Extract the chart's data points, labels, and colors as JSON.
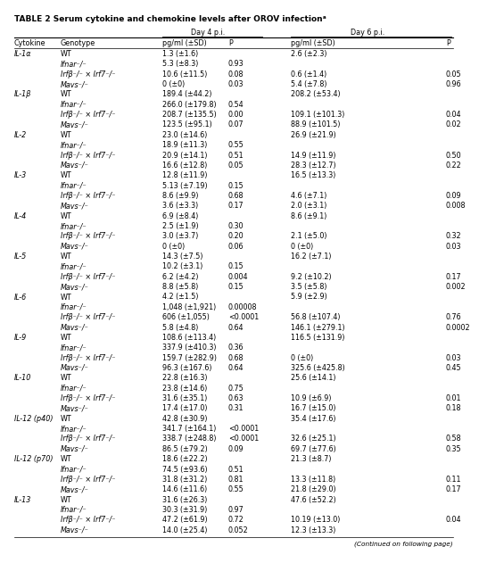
{
  "title": "TABLE 2 Serum cytokine and chemokine levels after OROV infectionᵃ",
  "header_day4": "Day 4 p.i.",
  "header_day6": "Day 6 p.i.",
  "col_headers": [
    "Cytokine",
    "Genotype",
    "pg/ml (±SD)",
    "P",
    "pg/ml (±SD)",
    "P"
  ],
  "rows": [
    [
      "IL-1α",
      "WT",
      "1.3 (±1.6)",
      "",
      "2.6 (±2.3)",
      ""
    ],
    [
      "",
      "Ifnar⁻/⁻",
      "5.3 (±8.3)",
      "0.93",
      "",
      ""
    ],
    [
      "",
      "Irfβ⁻/⁻ × Irf7⁻/⁻",
      "10.6 (±11.5)",
      "0.08",
      "0.6 (±1.4)",
      "0.05"
    ],
    [
      "",
      "Mavs⁻/⁻",
      "0 (±0)",
      "0.03",
      "5.4 (±7.8)",
      "0.96"
    ],
    [
      "IL-1β",
      "WT",
      "189.4 (±44.2)",
      "",
      "208.2 (±53.4)",
      ""
    ],
    [
      "",
      "Ifnar⁻/⁻",
      "266.0 (±179.8)",
      "0.54",
      "",
      ""
    ],
    [
      "",
      "Irfβ⁻/⁻ × Irf7⁻/⁻",
      "208.7 (±135.5)",
      "0.00",
      "109.1 (±101.3)",
      "0.04"
    ],
    [
      "",
      "Mavs⁻/⁻",
      "123.5 (±95.1)",
      "0.07",
      "88.9 (±101.5)",
      "0.02"
    ],
    [
      "IL-2",
      "WT",
      "23.0 (±14.6)",
      "",
      "26.9 (±21.9)",
      ""
    ],
    [
      "",
      "Ifnar⁻/⁻",
      "18.9 (±11.3)",
      "0.55",
      "",
      ""
    ],
    [
      "",
      "Irfβ⁻/⁻ × Irf7⁻/⁻",
      "20.9 (±14.1)",
      "0.51",
      "14.9 (±11.9)",
      "0.50"
    ],
    [
      "",
      "Mavs⁻/⁻",
      "16.6 (±12.8)",
      "0.05",
      "28.3 (±12.7)",
      "0.22"
    ],
    [
      "IL-3",
      "WT",
      "12.8 (±11.9)",
      "",
      "16.5 (±13.3)",
      ""
    ],
    [
      "",
      "Ifnar⁻/⁻",
      "5.13 (±7.19)",
      "0.15",
      "",
      ""
    ],
    [
      "",
      "Irfβ⁻/⁻ × Irf7⁻/⁻",
      "8.6 (±9.9)",
      "0.68",
      "4.6 (±7.1)",
      "0.09"
    ],
    [
      "",
      "Mavs⁻/⁻",
      "3.6 (±3.3)",
      "0.17",
      "2.0 (±3.1)",
      "0.008"
    ],
    [
      "IL-4",
      "WT",
      "6.9 (±8.4)",
      "",
      "8.6 (±9.1)",
      ""
    ],
    [
      "",
      "Ifnar⁻/⁻",
      "2.5 (±1.9)",
      "0.30",
      "",
      ""
    ],
    [
      "",
      "Irfβ⁻/⁻ × Irf7⁻/⁻",
      "3.0 (±3.7)",
      "0.20",
      "2.1 (±5.0)",
      "0.32"
    ],
    [
      "",
      "Mavs⁻/⁻",
      "0 (±0)",
      "0.06",
      "0 (±0)",
      "0.03"
    ],
    [
      "IL-5",
      "WT",
      "14.3 (±7.5)",
      "",
      "16.2 (±7.1)",
      ""
    ],
    [
      "",
      "Ifnar⁻/⁻",
      "10.2 (±3.1)",
      "0.15",
      "",
      ""
    ],
    [
      "",
      "Irfβ⁻/⁻ × Irf7⁻/⁻",
      "6.2 (±4.2)",
      "0.004",
      "9.2 (±10.2)",
      "0.17"
    ],
    [
      "",
      "Mavs⁻/⁻",
      "8.8 (±5.8)",
      "0.15",
      "3.5 (±5.8)",
      "0.002"
    ],
    [
      "IL-6",
      "WT",
      "4.2 (±1.5)",
      "",
      "5.9 (±2.9)",
      ""
    ],
    [
      "",
      "Ifnar⁻/⁻",
      "1,048 (±1,921)",
      "0.00008",
      "",
      ""
    ],
    [
      "",
      "Irfβ⁻/⁻ × Irf7⁻/⁻",
      "606 (±1,055)",
      "<0.0001",
      "56.8 (±107.4)",
      "0.76"
    ],
    [
      "",
      "Mavs⁻/⁻",
      "5.8 (±4.8)",
      "0.64",
      "146.1 (±279.1)",
      "0.0002"
    ],
    [
      "IL-9",
      "WT",
      "108.6 (±113.4)",
      "",
      "116.5 (±131.9)",
      ""
    ],
    [
      "",
      "Ifnar⁻/⁻",
      "337.9 (±410.3)",
      "0.36",
      "",
      ""
    ],
    [
      "",
      "Irfβ⁻/⁻ × Irf7⁻/⁻",
      "159.7 (±282.9)",
      "0.68",
      "0 (±0)",
      "0.03"
    ],
    [
      "",
      "Mavs⁻/⁻",
      "96.3 (±167.6)",
      "0.64",
      "325.6 (±425.8)",
      "0.45"
    ],
    [
      "IL-10",
      "WT",
      "22.8 (±16.3)",
      "",
      "25.6 (±14.1)",
      ""
    ],
    [
      "",
      "Ifnar⁻/⁻",
      "23.8 (±14.6)",
      "0.75",
      "",
      ""
    ],
    [
      "",
      "Irfβ⁻/⁻ × Irf7⁻/⁻",
      "31.6 (±35.1)",
      "0.63",
      "10.9 (±6.9)",
      "0.01"
    ],
    [
      "",
      "Mavs⁻/⁻",
      "17.4 (±17.0)",
      "0.31",
      "16.7 (±15.0)",
      "0.18"
    ],
    [
      "IL-12 (p40)",
      "WT",
      "42.8 (±30.9)",
      "",
      "35.4 (±17.6)",
      ""
    ],
    [
      "",
      "Ifnar⁻/⁻",
      "341.7 (±164.1)",
      "<0.0001",
      "",
      ""
    ],
    [
      "",
      "Irfβ⁻/⁻ × Irf7⁻/⁻",
      "338.7 (±248.8)",
      "<0.0001",
      "32.6 (±25.1)",
      "0.58"
    ],
    [
      "",
      "Mavs⁻/⁻",
      "86.5 (±79.2)",
      "0.09",
      "69.7 (±77.6)",
      "0.35"
    ],
    [
      "IL-12 (p70)",
      "WT",
      "18.6 (±22.2)",
      "",
      "21.3 (±8.7)",
      ""
    ],
    [
      "",
      "Ifnar⁻/⁻",
      "74.5 (±93.6)",
      "0.51",
      "",
      ""
    ],
    [
      "",
      "Irfβ⁻/⁻ × Irf7⁻/⁻",
      "31.8 (±31.2)",
      "0.81",
      "13.3 (±11.8)",
      "0.11"
    ],
    [
      "",
      "Mavs⁻/⁻",
      "14.6 (±11.6)",
      "0.55",
      "21.8 (±29.0)",
      "0.17"
    ],
    [
      "IL-13",
      "WT",
      "31.6 (±26.3)",
      "",
      "47.6 (±52.2)",
      ""
    ],
    [
      "",
      "Ifnar⁻/⁻",
      "30.3 (±31.9)",
      "0.97",
      "",
      ""
    ],
    [
      "",
      "Irfβ⁻/⁻ × Irf7⁻/⁻",
      "47.2 (±61.9)",
      "0.72",
      "10.19 (±13.0)",
      "0.04"
    ],
    [
      "",
      "Mavs⁻/⁻",
      "14.0 (±25.4)",
      "0.052",
      "12.3 (±13.3)",
      ""
    ]
  ],
  "footer": "(Continued on following page)",
  "bg_color": "#ffffff",
  "text_color": "#000000",
  "font_size": 5.8,
  "title_font_size": 6.5
}
